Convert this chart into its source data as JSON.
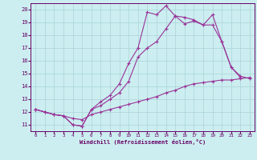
{
  "bg_color": "#cceef0",
  "grid_color": "#aad4d8",
  "line_color": "#993399",
  "marker": "+",
  "xlabel": "Windchill (Refroidissement éolien,°C)",
  "xlabel_color": "#660066",
  "tick_color": "#660066",
  "xlim": [
    -0.5,
    23.5
  ],
  "ylim": [
    10.5,
    20.5
  ],
  "yticks": [
    11,
    12,
    13,
    14,
    15,
    16,
    17,
    18,
    19,
    20
  ],
  "xticks": [
    0,
    1,
    2,
    3,
    4,
    5,
    6,
    7,
    8,
    9,
    10,
    11,
    12,
    13,
    14,
    15,
    16,
    17,
    18,
    19,
    20,
    21,
    22,
    23
  ],
  "line1_x": [
    0,
    1,
    2,
    3,
    4,
    5,
    6,
    7,
    8,
    9,
    10,
    11,
    12,
    13,
    14,
    15,
    16,
    17,
    18,
    19,
    20,
    21,
    22
  ],
  "line1_y": [
    12.2,
    12.0,
    11.8,
    11.7,
    11.0,
    10.9,
    12.2,
    12.8,
    13.3,
    14.2,
    15.8,
    17.0,
    19.8,
    19.6,
    20.3,
    19.5,
    18.9,
    19.1,
    18.8,
    19.6,
    17.5,
    15.5,
    14.7
  ],
  "line2_x": [
    0,
    1,
    2,
    3,
    4,
    5,
    6,
    7,
    8,
    9,
    10,
    11,
    12,
    13,
    14,
    15,
    16,
    17,
    18,
    19,
    20,
    21,
    22,
    23
  ],
  "line2_y": [
    12.2,
    12.0,
    11.8,
    11.7,
    11.0,
    10.9,
    12.2,
    12.5,
    13.0,
    13.5,
    14.4,
    16.3,
    17.0,
    17.5,
    18.5,
    19.5,
    19.4,
    19.2,
    18.8,
    18.8,
    17.5,
    15.5,
    14.8,
    14.6
  ],
  "line3_x": [
    0,
    1,
    2,
    3,
    4,
    5,
    6,
    7,
    8,
    9,
    10,
    11,
    12,
    13,
    14,
    15,
    16,
    17,
    18,
    19,
    20,
    21,
    22,
    23
  ],
  "line3_y": [
    12.2,
    12.0,
    11.8,
    11.7,
    11.5,
    11.4,
    11.8,
    12.0,
    12.2,
    12.4,
    12.6,
    12.8,
    13.0,
    13.2,
    13.5,
    13.7,
    14.0,
    14.2,
    14.3,
    14.4,
    14.5,
    14.5,
    14.6,
    14.7
  ]
}
